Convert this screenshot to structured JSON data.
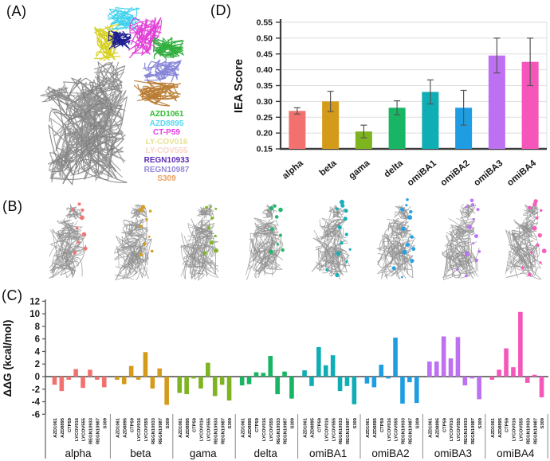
{
  "panel_labels": {
    "a": "(A)",
    "b": "(B)",
    "c": "(C)",
    "d": "(D)"
  },
  "panel_a": {
    "legend": [
      {
        "label": "AZD1061",
        "color": "#2fbe2f"
      },
      {
        "label": "AZD8895",
        "color": "#55d7f2"
      },
      {
        "label": "CT-P59",
        "color": "#e93fe6"
      },
      {
        "label": "LY-COV016",
        "color": "#e8e295"
      },
      {
        "label": "LY-COV555",
        "color": "#f8d5c6"
      },
      {
        "label": "REGN10933",
        "color": "#5a2cb4"
      },
      {
        "label": "REGN10987",
        "color": "#9489d6"
      },
      {
        "label": "S309",
        "color": "#eb9f63"
      }
    ],
    "structure_colors": {
      "spike_gray": [
        "#7c7c7c",
        "#9a9a9a",
        "#8b8b8b"
      ],
      "antibody_ribbons": [
        "#d6d01e",
        "#3fd2ee",
        "#e23fd6",
        "#1b1b90",
        "#2fae3c",
        "#8584d8",
        "#b97c33"
      ]
    }
  },
  "chart_data": [
    {
      "id": "iea_score",
      "type": "bar",
      "title": "",
      "xlabel": "",
      "ylabel": "IEA Score",
      "categories": [
        "alpha",
        "beta",
        "gama",
        "delta",
        "omiBA1",
        "omiBA2",
        "omiBA3",
        "omiBA4"
      ],
      "values": [
        0.27,
        0.3,
        0.205,
        0.28,
        0.33,
        0.28,
        0.445,
        0.425
      ],
      "errors": [
        0.01,
        0.032,
        0.02,
        0.022,
        0.038,
        0.055,
        0.055,
        0.075
      ],
      "colors": [
        "#f2716e",
        "#d49a1a",
        "#7eb41f",
        "#17b564",
        "#0fadb4",
        "#1f9de2",
        "#bd70f2",
        "#f556ba"
      ],
      "ylim": [
        0.15,
        0.55
      ],
      "yticks": [
        0.55,
        0.5,
        0.45,
        0.4,
        0.35,
        0.3,
        0.25,
        0.2,
        0.15
      ],
      "grid": true,
      "legend_position": "none"
    },
    {
      "id": "ddg",
      "type": "grouped-bar",
      "title": "",
      "xlabel": "",
      "ylabel": "ΔΔG (kcal/mol)",
      "categories": [
        "AZD1061",
        "AZD8895",
        "CTP59",
        "LYCOV016",
        "LYCOV555",
        "REGN10933",
        "REGN10987",
        "S309"
      ],
      "series": [
        {
          "name": "alpha",
          "color": "#f2716e",
          "values": [
            -1.3,
            -2.3,
            -0.5,
            1.2,
            -1.8,
            1.1,
            -0.5,
            -1.7
          ]
        },
        {
          "name": "beta",
          "color": "#d49a1a",
          "values": [
            -0.5,
            -1.2,
            1.7,
            -0.5,
            3.9,
            -1.9,
            1.3,
            -4.5
          ]
        },
        {
          "name": "gama",
          "color": "#7eb41f",
          "values": [
            -2.6,
            -2.8,
            -0.3,
            -1.9,
            2.2,
            -3.1,
            -1.3,
            -3.8
          ]
        },
        {
          "name": "delta",
          "color": "#17b564",
          "values": [
            -1.4,
            -1.2,
            0.7,
            0.6,
            3.3,
            -2.8,
            0.8,
            -3.5
          ]
        },
        {
          "name": "omiBA1",
          "color": "#0fadb4",
          "values": [
            1.0,
            -1.5,
            4.7,
            1.8,
            3.4,
            -2.3,
            -1.5,
            -4.4
          ]
        },
        {
          "name": "omiBA2",
          "color": "#1f9de2",
          "values": [
            -1.1,
            -1.7,
            1.9,
            -0.3,
            6.2,
            -4.3,
            -0.9,
            -4.2
          ]
        },
        {
          "name": "omiBA3",
          "color": "#bd70f2",
          "values": [
            2.4,
            2.4,
            6.4,
            2.9,
            6.3,
            -1.4,
            -0.3,
            -3.6
          ]
        },
        {
          "name": "omiBA4",
          "color": "#f556ba",
          "values": [
            -0.5,
            1.1,
            4.5,
            1.5,
            10.3,
            -1.0,
            0.3,
            -3.3
          ]
        }
      ],
      "ylim": [
        -6,
        12
      ],
      "yticks": [
        12,
        10,
        8,
        6,
        4,
        2,
        0,
        -2,
        -4,
        -6
      ],
      "grid": false,
      "legend_position": "none"
    }
  ],
  "panel_b": {
    "structure_dot_colors": [
      "#f2716e",
      "#d49a1a",
      "#7eb41f",
      "#17b564",
      "#0fadb4",
      "#1f9de2",
      "#bd70f2",
      "#f556ba"
    ],
    "structure_gray": "#9a9a9a"
  }
}
